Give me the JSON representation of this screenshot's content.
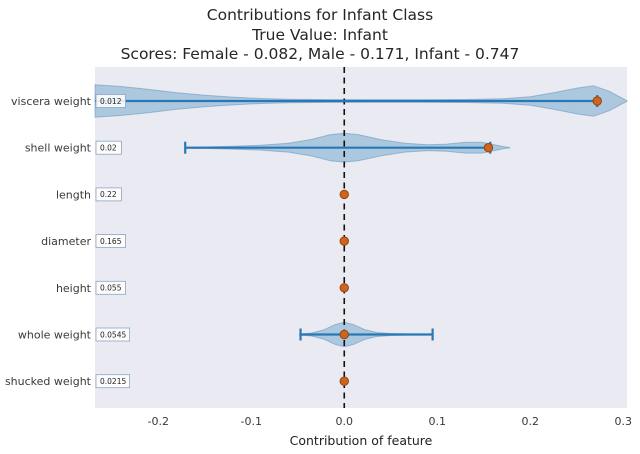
{
  "title": {
    "class_label": "Infant",
    "true_value": "Infant",
    "scores": {
      "Female": 0.082,
      "Male": 0.171,
      "Infant": 0.747
    }
  },
  "chart_data": {
    "type": "violin",
    "orientation": "horizontal",
    "title_lines": [
      "Contributions for Infant Class",
      "True Value: Infant",
      "Scores: Female - 0.082, Male - 0.171, Infant - 0.747"
    ],
    "xlabel": "Contribution of feature",
    "xlim": [
      -0.268,
      0.304
    ],
    "xticks": [
      {
        "value": -0.2,
        "label": "-0.2"
      },
      {
        "value": -0.1,
        "label": "-0.1"
      },
      {
        "value": 0.0,
        "label": "0.0"
      },
      {
        "value": 0.1,
        "label": "0.1"
      },
      {
        "value": 0.2,
        "label": "0.2"
      },
      {
        "value": 0.3,
        "label": "0.3"
      }
    ],
    "zero_line": 0.0,
    "grid": false,
    "legend": false,
    "rows": [
      {
        "feature": "viscera weight",
        "feature_value": "0.012",
        "point": 0.272,
        "bar": [
          -0.268,
          0.272
        ],
        "caps": [
          false,
          true
        ],
        "violin": [
          [
            -0.268,
            0.95
          ],
          [
            -0.24,
            0.85
          ],
          [
            -0.21,
            0.68
          ],
          [
            -0.18,
            0.49
          ],
          [
            -0.15,
            0.34
          ],
          [
            -0.12,
            0.23
          ],
          [
            -0.09,
            0.15
          ],
          [
            -0.06,
            0.1
          ],
          [
            -0.02,
            0.08
          ],
          [
            0.03,
            0.07
          ],
          [
            0.08,
            0.07
          ],
          [
            0.13,
            0.09
          ],
          [
            0.17,
            0.13
          ],
          [
            0.2,
            0.25
          ],
          [
            0.225,
            0.48
          ],
          [
            0.25,
            0.76
          ],
          [
            0.268,
            0.9
          ],
          [
            0.285,
            0.57
          ],
          [
            0.298,
            0.19
          ],
          [
            0.304,
            0.02
          ]
        ]
      },
      {
        "feature": "shell weight",
        "feature_value": "0.02",
        "point": 0.155,
        "bar": [
          -0.171,
          0.157
        ],
        "caps": [
          true,
          true
        ],
        "violin": [
          [
            -0.171,
            0.03
          ],
          [
            -0.15,
            0.04
          ],
          [
            -0.12,
            0.08
          ],
          [
            -0.09,
            0.14
          ],
          [
            -0.06,
            0.26
          ],
          [
            -0.035,
            0.49
          ],
          [
            -0.015,
            0.77
          ],
          [
            0,
            0.85
          ],
          [
            0.015,
            0.77
          ],
          [
            0.04,
            0.47
          ],
          [
            0.065,
            0.26
          ],
          [
            0.09,
            0.17
          ],
          [
            0.11,
            0.21
          ],
          [
            0.13,
            0.32
          ],
          [
            0.148,
            0.32
          ],
          [
            0.16,
            0.19
          ],
          [
            0.172,
            0.05
          ],
          [
            0.178,
            0.01
          ]
        ]
      },
      {
        "feature": "length",
        "feature_value": "0.22",
        "point": 0.0,
        "bar": null,
        "caps": null,
        "violin": null
      },
      {
        "feature": "diameter",
        "feature_value": "0.165",
        "point": 0.0,
        "bar": null,
        "caps": null,
        "violin": null
      },
      {
        "feature": "height",
        "feature_value": "0.055",
        "point": 0.0,
        "bar": null,
        "caps": null,
        "violin": null
      },
      {
        "feature": "whole weight",
        "feature_value": "0.0545",
        "point": 0.0,
        "bar": [
          -0.047,
          0.095
        ],
        "caps": [
          true,
          true
        ],
        "violin": [
          [
            -0.048,
            0.03
          ],
          [
            -0.035,
            0.09
          ],
          [
            -0.022,
            0.27
          ],
          [
            -0.01,
            0.58
          ],
          [
            0,
            0.72
          ],
          [
            0.01,
            0.58
          ],
          [
            0.022,
            0.29
          ],
          [
            0.035,
            0.12
          ],
          [
            0.05,
            0.06
          ],
          [
            0.07,
            0.03
          ],
          [
            0.095,
            0.015
          ]
        ]
      },
      {
        "feature": "shucked weight",
        "feature_value": "0.0215",
        "point": 0.0,
        "bar": null,
        "caps": null,
        "violin": null
      }
    ],
    "colors": {
      "plot_bg": "#eaeaf2",
      "violin_fill": "#6ea6cc",
      "violin_edge": "#5b8db8",
      "errorbar": "#2878b8",
      "point_fill": "#d0641c",
      "point_edge": "#8f4512",
      "zero_line": "#111111",
      "text": "#3a3a3a"
    }
  }
}
